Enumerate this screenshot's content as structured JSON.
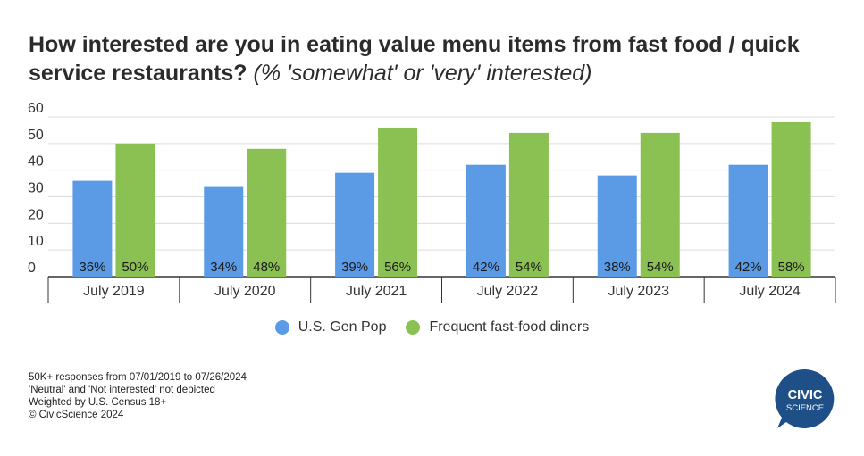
{
  "title": "How interested are you in eating value menu items from fast food / quick service restaurants?",
  "subtitle": "(% 'somewhat' or 'very' interested)",
  "chart_data": {
    "type": "bar",
    "title": "How interested are you in eating value menu items from fast food / quick service restaurants?",
    "subtitle": "(% 'somewhat' or 'very' interested)",
    "categories": [
      "July 2019",
      "July 2020",
      "July 2021",
      "July 2022",
      "July 2023",
      "July 2024"
    ],
    "series": [
      {
        "name": "U.S. Gen Pop",
        "values": [
          36,
          34,
          39,
          42,
          38,
          42
        ],
        "labels": [
          "36%",
          "34%",
          "39%",
          "42%",
          "38%",
          "42%"
        ],
        "color": "#5b9be6"
      },
      {
        "name": "Frequent fast-food diners",
        "values": [
          50,
          48,
          56,
          54,
          54,
          58
        ],
        "labels": [
          "50%",
          "48%",
          "56%",
          "54%",
          "54%",
          "58%"
        ],
        "color": "#8bc152"
      }
    ],
    "ylim": [
      0,
      60
    ],
    "yticks": [
      0,
      10,
      20,
      30,
      40,
      50,
      60
    ],
    "grid": true,
    "legend_position": "bottom-center"
  },
  "legend": [
    {
      "label": "U.S. Gen Pop",
      "color": "#5b9be6"
    },
    {
      "label": "Frequent fast-food diners",
      "color": "#8bc152"
    }
  ],
  "notes": [
    "50K+ responses from 07/01/2019 to 07/26/2024",
    "'Neutral' and 'Not interested' not depicted",
    "Weighted by U.S. Census 18+",
    "© CivicScience 2024"
  ],
  "logo": {
    "line1": "CIVIC",
    "line2": "SCIENCE",
    "color": "#1f4f87"
  }
}
